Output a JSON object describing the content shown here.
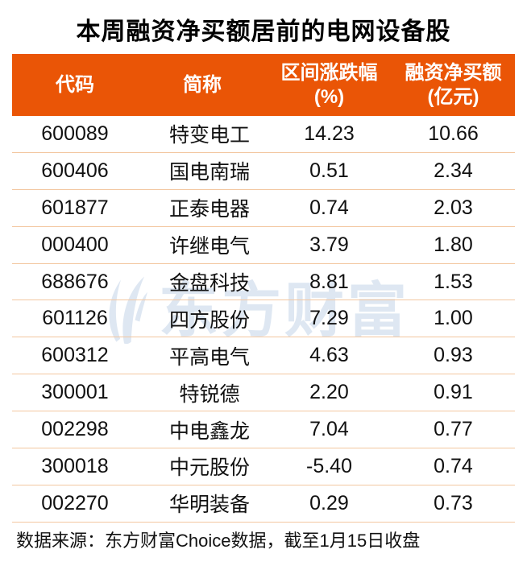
{
  "title": "本周融资净买额居前的电网设备股",
  "colors": {
    "header_bg": "#EA5506",
    "header_text": "#FFFFFF",
    "row_divider": "#F3C7A0",
    "body_text": "#111111",
    "watermark": "#DEE7F2",
    "background": "#FFFFFF"
  },
  "table": {
    "headers": [
      {
        "key": "code",
        "lines": [
          "代码"
        ]
      },
      {
        "key": "name",
        "lines": [
          "简称"
        ]
      },
      {
        "key": "change",
        "lines": [
          "区间涨跌幅",
          "(%)"
        ]
      },
      {
        "key": "netbuy",
        "lines": [
          "融资净买额",
          "(亿元)"
        ]
      }
    ],
    "rows": [
      {
        "code": "600089",
        "name": "特变电工",
        "change": "14.23",
        "netbuy": "10.66"
      },
      {
        "code": "600406",
        "name": "国电南瑞",
        "change": "0.51",
        "netbuy": "2.34"
      },
      {
        "code": "601877",
        "name": "正泰电器",
        "change": "0.74",
        "netbuy": "2.03"
      },
      {
        "code": "000400",
        "name": "许继电气",
        "change": "3.79",
        "netbuy": "1.80"
      },
      {
        "code": "688676",
        "name": "金盘科技",
        "change": "8.81",
        "netbuy": "1.53"
      },
      {
        "code": "601126",
        "name": "四方股份",
        "change": "7.29",
        "netbuy": "1.00"
      },
      {
        "code": "600312",
        "name": "平高电气",
        "change": "4.63",
        "netbuy": "0.93"
      },
      {
        "code": "300001",
        "name": "特锐德",
        "change": "2.20",
        "netbuy": "0.91"
      },
      {
        "code": "002298",
        "name": "中电鑫龙",
        "change": "7.04",
        "netbuy": "0.77"
      },
      {
        "code": "300018",
        "name": "中元股份",
        "change": "-5.40",
        "netbuy": "0.74"
      },
      {
        "code": "002270",
        "name": "华明装备",
        "change": "0.29",
        "netbuy": "0.73"
      }
    ]
  },
  "watermark": {
    "text": "东方财富",
    "logo": "eastmoney-swoosh-logo"
  },
  "footer": {
    "source": "数据来源：东方财富Choice数据，截至1月15日收盘"
  },
  "chart_data": {
    "type": "table",
    "title": "本周融资净买额居前的电网设备股",
    "columns": [
      "代码",
      "简称",
      "区间涨跌幅(%)",
      "融资净买额(亿元)"
    ],
    "rows": [
      [
        "600089",
        "特变电工",
        14.23,
        10.66
      ],
      [
        "600406",
        "国电南瑞",
        0.51,
        2.34
      ],
      [
        "601877",
        "正泰电器",
        0.74,
        2.03
      ],
      [
        "000400",
        "许继电气",
        3.79,
        1.8
      ],
      [
        "688676",
        "金盘科技",
        8.81,
        1.53
      ],
      [
        "601126",
        "四方股份",
        7.29,
        1.0
      ],
      [
        "600312",
        "平高电气",
        4.63,
        0.93
      ],
      [
        "300001",
        "特锐德",
        2.2,
        0.91
      ],
      [
        "002298",
        "中电鑫龙",
        7.04,
        0.77
      ],
      [
        "300018",
        "中元股份",
        -5.4,
        0.74
      ],
      [
        "002270",
        "华明装备",
        0.29,
        0.73
      ]
    ],
    "note": "数据来源：东方财富Choice数据，截至1月15日收盘"
  }
}
